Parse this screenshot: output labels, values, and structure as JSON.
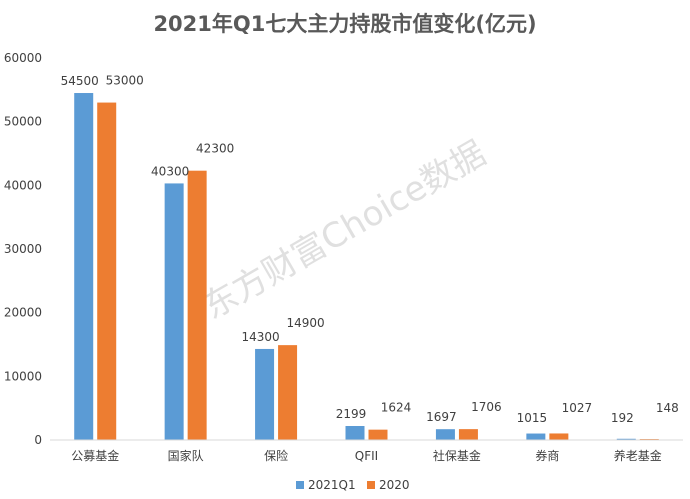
{
  "chart_data": {
    "type": "bar",
    "title": "2021年Q1七大主力持股市值变化(亿元)",
    "categories": [
      "公募基金",
      "国家队",
      "保险",
      "QFII",
      "社保基金",
      "券商",
      "养老基金"
    ],
    "series": [
      {
        "name": "2021Q1",
        "color": "#5b9bd5",
        "values": [
          54500,
          40300,
          14300,
          2199,
          1697,
          1015,
          192
        ]
      },
      {
        "name": "2020",
        "color": "#ed7d31",
        "values": [
          53000,
          42300,
          14900,
          1624,
          1706,
          1027,
          148
        ]
      }
    ],
    "ylim": [
      0,
      60000
    ],
    "yticks": [
      0,
      10000,
      20000,
      30000,
      40000,
      50000,
      60000
    ],
    "grid": false,
    "legend": "bottom",
    "watermark": "东方财富Choice数据"
  }
}
